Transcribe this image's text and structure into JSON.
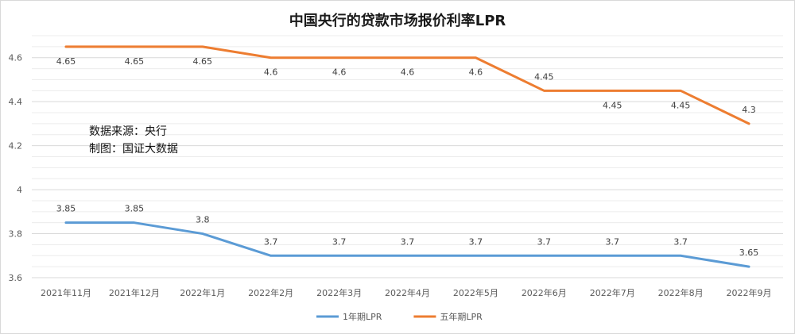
{
  "chart_data": {
    "type": "line",
    "title": "中国央行的贷款市场报价利率LPR",
    "categories": [
      "2021年11月",
      "2021年12月",
      "2022年1月",
      "2022年2月",
      "2022年3月",
      "2022年4月",
      "2022年5月",
      "2022年6月",
      "2022年7月",
      "2022年8月",
      "2022年9月"
    ],
    "series": [
      {
        "name": "1年期LPR",
        "color": "#5b9bd5",
        "values": [
          3.85,
          3.85,
          3.8,
          3.7,
          3.7,
          3.7,
          3.7,
          3.7,
          3.7,
          3.7,
          3.65
        ],
        "labels": [
          "3.85",
          "3.85",
          "3.8",
          "3.7",
          "3.7",
          "3.7",
          "3.7",
          "3.7",
          "3.7",
          "3.7",
          "3.65"
        ]
      },
      {
        "name": "五年期LPR",
        "color": "#ed7d31",
        "values": [
          4.65,
          4.65,
          4.65,
          4.6,
          4.6,
          4.6,
          4.6,
          4.45,
          4.45,
          4.45,
          4.3
        ],
        "labels": [
          "4.65",
          "4.65",
          "4.65",
          "4.6",
          "4.6",
          "4.6",
          "4.6",
          "4.45",
          "4.45",
          "4.45",
          "4.3"
        ]
      }
    ],
    "yticks": [
      "3.6",
      "3.8",
      "4",
      "4.2",
      "4.4",
      "4.6"
    ],
    "ylim": [
      3.6,
      4.7
    ],
    "grid": true,
    "legend": "bottom"
  },
  "annotation": {
    "source": "数据来源：央行",
    "made_by": "制图：国证大数据"
  }
}
